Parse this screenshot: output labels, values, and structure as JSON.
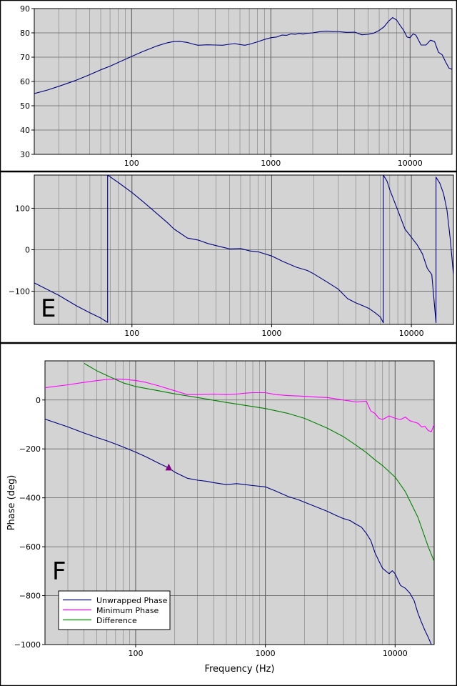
{
  "chart_data": [
    {
      "type": "line",
      "xscale": "log",
      "xlim": [
        20,
        20000
      ],
      "ylim": [
        30,
        90
      ],
      "xticks": [
        100,
        1000,
        10000
      ],
      "yticks": [
        30,
        40,
        50,
        60,
        70,
        80,
        90
      ],
      "grid": true,
      "xlabel": "",
      "ylabel": "",
      "panel_letter": "",
      "series": [
        {
          "color": "#000080",
          "x": [
            20,
            25,
            30,
            40,
            50,
            60,
            70,
            80,
            100,
            120,
            150,
            180,
            200,
            220,
            250,
            280,
            300,
            350,
            400,
            450,
            500,
            550,
            600,
            650,
            700,
            800,
            900,
            1000,
            1100,
            1200,
            1300,
            1400,
            1500,
            1600,
            1700,
            1800,
            2000,
            2200,
            2500,
            2800,
            3000,
            3500,
            4000,
            4500,
            5000,
            5500,
            6000,
            6500,
            7000,
            7500,
            8000,
            8500,
            9000,
            9500,
            10000,
            10500,
            11000,
            12000,
            13000,
            14000,
            15000,
            16000,
            17000,
            18000,
            19000,
            20000
          ],
          "y": [
            55,
            56.5,
            58,
            60.5,
            62.8,
            64.8,
            66.3,
            67.8,
            70.3,
            72.3,
            74.5,
            75.9,
            76.4,
            76.5,
            76.1,
            75.3,
            74.9,
            75.1,
            75.0,
            74.9,
            75.3,
            75.6,
            75.2,
            74.9,
            75.3,
            76.3,
            77.3,
            78.0,
            78.3,
            79.1,
            79.0,
            79.6,
            79.4,
            79.8,
            79.5,
            79.8,
            80.0,
            80.4,
            80.7,
            80.5,
            80.6,
            80.2,
            80.3,
            79.2,
            79.4,
            79.9,
            81.0,
            82.5,
            84.8,
            86.3,
            85.3,
            83.0,
            81.0,
            78.3,
            78.0,
            79.6,
            79.1,
            75.0,
            75.0,
            77.0,
            76.4,
            72.0,
            71.0,
            68.0,
            65.5,
            65.0
          ]
        }
      ]
    },
    {
      "type": "line",
      "xscale": "log",
      "xlim": [
        20,
        20000
      ],
      "ylim": [
        -180,
        180
      ],
      "xticks": [
        100,
        1000,
        10000
      ],
      "yticks": [
        -100,
        0,
        100
      ],
      "grid": true,
      "xlabel": "",
      "ylabel": "",
      "panel_letter": "E",
      "series": [
        {
          "color": "#000080",
          "x": [
            20,
            30,
            40,
            50,
            60,
            67,
            67,
            80,
            100,
            120,
            150,
            180,
            200,
            250,
            300,
            350,
            400,
            500,
            600,
            700,
            800,
            1000,
            1200,
            1500,
            1800,
            2000,
            2500,
            3000,
            3500,
            4000,
            4500,
            5000,
            5500,
            6000,
            6300,
            6300,
            6700,
            7000,
            8000,
            9000,
            10000,
            11000,
            12000,
            13000,
            14000,
            15000,
            15000,
            16000,
            17000,
            18000,
            19000,
            20000
          ],
          "y": [
            -80,
            -110,
            -135,
            -152,
            -165,
            -175,
            180,
            162,
            138,
            116,
            88,
            65,
            50,
            28,
            23,
            15,
            10,
            2,
            3,
            -3,
            -5,
            -15,
            -28,
            -42,
            -50,
            -58,
            -78,
            -95,
            -118,
            -128,
            -135,
            -142,
            -152,
            -162,
            -176,
            180,
            165,
            145,
            95,
            50,
            30,
            12,
            -10,
            -45,
            -60,
            -176,
            175,
            160,
            135,
            95,
            25,
            -60
          ]
        }
      ]
    },
    {
      "type": "line",
      "xscale": "log",
      "xlim": [
        20,
        20000
      ],
      "ylim": [
        -1000,
        160
      ],
      "xticks": [
        100,
        1000,
        10000
      ],
      "yticks": [
        -1000,
        -800,
        -600,
        -400,
        -200,
        0
      ],
      "grid": true,
      "xlabel": "Frequency (Hz)",
      "ylabel": "Phase (deg)",
      "panel_letter": "F",
      "legend": "lower-left",
      "series": [
        {
          "name": "Unwrapped Phase",
          "color": "#000080",
          "x": [
            20,
            30,
            40,
            50,
            60,
            70,
            80,
            100,
            120,
            150,
            180,
            200,
            250,
            300,
            350,
            400,
            500,
            600,
            700,
            800,
            1000,
            1200,
            1500,
            1800,
            2000,
            2500,
            3000,
            3500,
            4000,
            4500,
            5000,
            5500,
            6000,
            6500,
            7000,
            7500,
            8000,
            8500,
            9000,
            9500,
            10000,
            11000,
            12000,
            13000,
            14000,
            15000,
            16000,
            17000,
            18000,
            19000
          ],
          "y": [
            -78,
            -110,
            -135,
            -153,
            -167,
            -180,
            -192,
            -213,
            -232,
            -258,
            -278,
            -295,
            -320,
            -328,
            -332,
            -338,
            -346,
            -342,
            -346,
            -350,
            -355,
            -372,
            -395,
            -408,
            -418,
            -438,
            -455,
            -472,
            -485,
            -493,
            -508,
            -520,
            -545,
            -575,
            -625,
            -658,
            -688,
            -700,
            -710,
            -698,
            -710,
            -758,
            -770,
            -790,
            -820,
            -872,
            -910,
            -943,
            -970,
            -1000
          ]
        },
        {
          "name": "Minimum Phase",
          "color": "#ff00ff",
          "x": [
            20,
            30,
            40,
            50,
            60,
            70,
            80,
            100,
            120,
            150,
            200,
            250,
            300,
            400,
            500,
            600,
            700,
            800,
            1000,
            1200,
            1500,
            2000,
            2500,
            3000,
            4000,
            5000,
            6000,
            6500,
            7000,
            7500,
            8000,
            9000,
            10000,
            11000,
            12000,
            13000,
            14000,
            15000,
            16000,
            17000,
            18000,
            19000,
            20000
          ],
          "y": [
            50,
            62,
            72,
            79,
            84,
            86,
            85,
            80,
            72,
            58,
            38,
            22,
            22,
            24,
            22,
            24,
            28,
            30,
            30,
            22,
            18,
            15,
            12,
            10,
            0,
            -8,
            -5,
            -45,
            -55,
            -75,
            -80,
            -65,
            -75,
            -80,
            -70,
            -85,
            -90,
            -95,
            -110,
            -108,
            -125,
            -130,
            -100
          ]
        },
        {
          "name": "Difference",
          "color": "#008000",
          "x": [
            40,
            50,
            60,
            80,
            100,
            150,
            200,
            300,
            500,
            1000,
            1500,
            2000,
            3000,
            4000,
            5000,
            6000,
            7000,
            8000,
            10000,
            12000,
            15000,
            18000,
            20000
          ],
          "y": [
            150,
            120,
            100,
            70,
            55,
            38,
            25,
            10,
            -10,
            -35,
            -55,
            -75,
            -115,
            -150,
            -185,
            -215,
            -245,
            -268,
            -315,
            -375,
            -480,
            -600,
            -660
          ]
        }
      ]
    }
  ]
}
